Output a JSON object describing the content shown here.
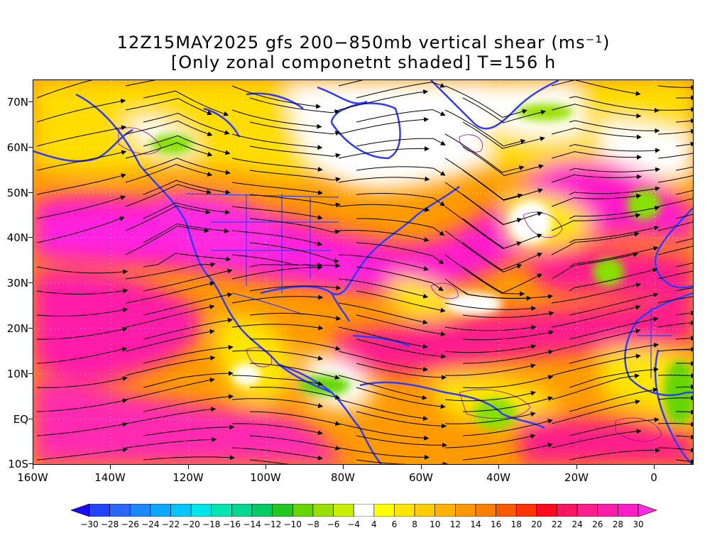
{
  "title": {
    "line1": "12Z15MAY2025 gfs 200−850mb vertical shear (ms⁻¹)",
    "line2": "[Only zonal componetnt shaded] T=156 h"
  },
  "map": {
    "lat_labels": [
      "70N",
      "60N",
      "50N",
      "40N",
      "30N",
      "20N",
      "10N",
      "EQ",
      "10S"
    ],
    "lon_labels": [
      "160W",
      "140W",
      "120W",
      "100W",
      "80W",
      "60W",
      "40W",
      "20W",
      "0"
    ],
    "extent": {
      "lon": [
        -160,
        10
      ],
      "lat": [
        -10,
        75
      ]
    },
    "features": [
      "zonal-shear-shading",
      "shear-streamlines",
      "coastlines",
      "country-borders",
      "us-state-borders",
      "dotted-grid"
    ]
  },
  "colorbar": {
    "labels": [
      "-30",
      "-28",
      "-26",
      "-24",
      "-22",
      "-20",
      "-18",
      "-16",
      "-14",
      "-12",
      "-10",
      "-8",
      "-6",
      "-4",
      "4",
      "6",
      "8",
      "10",
      "12",
      "14",
      "16",
      "18",
      "20",
      "22",
      "24",
      "26",
      "28",
      "30"
    ],
    "colors": [
      "#1a0aff",
      "#2244ff",
      "#2a66ff",
      "#1a88ff",
      "#0aa8ff",
      "#00c8ff",
      "#00e6e6",
      "#00e6b0",
      "#00d890",
      "#00cc66",
      "#22c822",
      "#66d600",
      "#99e000",
      "#c8ee00",
      "#ffffff",
      "#ffff00",
      "#ffe600",
      "#ffcc00",
      "#ffb300",
      "#ff9900",
      "#ff7f00",
      "#ff5a00",
      "#ff3300",
      "#ff0a1e",
      "#ff1464",
      "#ff1e8c",
      "#ff1eaa",
      "#ff1ec8",
      "#ff2ae0"
    ]
  }
}
